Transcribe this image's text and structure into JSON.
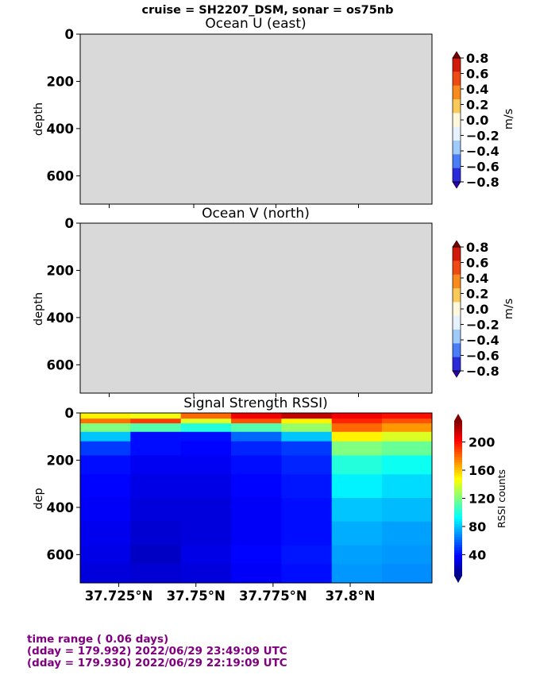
{
  "figure": {
    "suptitle": "cruise = SH2207_DSM,  sonar = os75nb"
  },
  "chart_data": [
    {
      "type": "heatmap",
      "title": "Ocean U (east)",
      "ylabel": "depth",
      "ylim": [
        720,
        0
      ],
      "yticks": [
        0,
        200,
        400,
        600
      ],
      "xticks": [],
      "background_color": "#d9d9d9",
      "data": "no valid data (all masked)",
      "colorbar": {
        "label": "m/s",
        "ticks": [
          "0.8",
          "0.6",
          "0.4",
          "0.2",
          "0.0",
          "−0.2",
          "−0.4",
          "−0.6",
          "−0.8"
        ],
        "colors_top_to_bottom": [
          "#d21a0a",
          "#f04a14",
          "#f88a1e",
          "#f9c95a",
          "#fdf7dc",
          "#e6f2fd",
          "#9ecbf9",
          "#4a7ef7",
          "#2b2bd9"
        ],
        "extend_top": "#7a0000",
        "extend_bottom": "#2a00b0"
      }
    },
    {
      "type": "heatmap",
      "title": "Ocean V (north)",
      "ylabel": "depth",
      "ylim": [
        720,
        0
      ],
      "yticks": [
        0,
        200,
        400,
        600
      ],
      "xticks": [],
      "background_color": "#d9d9d9",
      "data": "no valid data (all masked)",
      "colorbar": {
        "label": "m/s",
        "ticks": [
          "0.8",
          "0.6",
          "0.4",
          "0.2",
          "0.0",
          "−0.2",
          "−0.4",
          "−0.6",
          "−0.8"
        ],
        "colors_top_to_bottom": [
          "#d21a0a",
          "#f04a14",
          "#f88a1e",
          "#f9c95a",
          "#fdf7dc",
          "#e6f2fd",
          "#9ecbf9",
          "#4a7ef7",
          "#2b2bd9"
        ],
        "extend_top": "#7a0000",
        "extend_bottom": "#2a00b0"
      }
    },
    {
      "type": "heatmap",
      "title": "Signal Strength RSSI)",
      "ylabel": "dep",
      "ylim": [
        720,
        0
      ],
      "yticks": [
        0,
        200,
        400,
        600
      ],
      "xlim": [
        37.7125,
        37.8265
      ],
      "xticks": [
        37.725,
        37.75,
        37.775,
        37.8
      ],
      "xticklabels": [
        "37.725°N",
        "37.75°N",
        "37.775°N",
        "37.8°N"
      ],
      "columns_x_edges": [
        37.7125,
        37.7288,
        37.7451,
        37.7614,
        37.7777,
        37.794,
        37.8103,
        37.8265
      ],
      "depth_bins": [
        0,
        24,
        44,
        80,
        120,
        180,
        260,
        360,
        460,
        560,
        640,
        720
      ],
      "rssi_values": [
        [
          150,
          145,
          180,
          205,
          215,
          205,
          200
        ],
        [
          178,
          190,
          140,
          185,
          150,
          195,
          185
        ],
        [
          120,
          110,
          100,
          110,
          125,
          180,
          170
        ],
        [
          80,
          40,
          40,
          60,
          80,
          150,
          140
        ],
        [
          50,
          40,
          38,
          45,
          50,
          120,
          115
        ],
        [
          40,
          35,
          35,
          40,
          45,
          100,
          95
        ],
        [
          38,
          32,
          32,
          38,
          42,
          90,
          85
        ],
        [
          36,
          30,
          30,
          36,
          40,
          80,
          78
        ],
        [
          34,
          28,
          30,
          36,
          40,
          75,
          72
        ],
        [
          32,
          25,
          32,
          38,
          42,
          72,
          70
        ],
        [
          30,
          28,
          30,
          36,
          40,
          70,
          68
        ]
      ],
      "colorbar": {
        "label": "RSSI counts",
        "ticks": [
          40,
          80,
          120,
          160,
          200
        ],
        "range": [
          10,
          230
        ],
        "colormap": "jet"
      }
    }
  ],
  "footer": {
    "line1": "time range ( 0.06 days)",
    "line2": "(dday = 179.992) 2022/06/29 23:49:09 UTC",
    "line3": "(dday = 179.930) 2022/06/29 22:19:09 UTC"
  }
}
